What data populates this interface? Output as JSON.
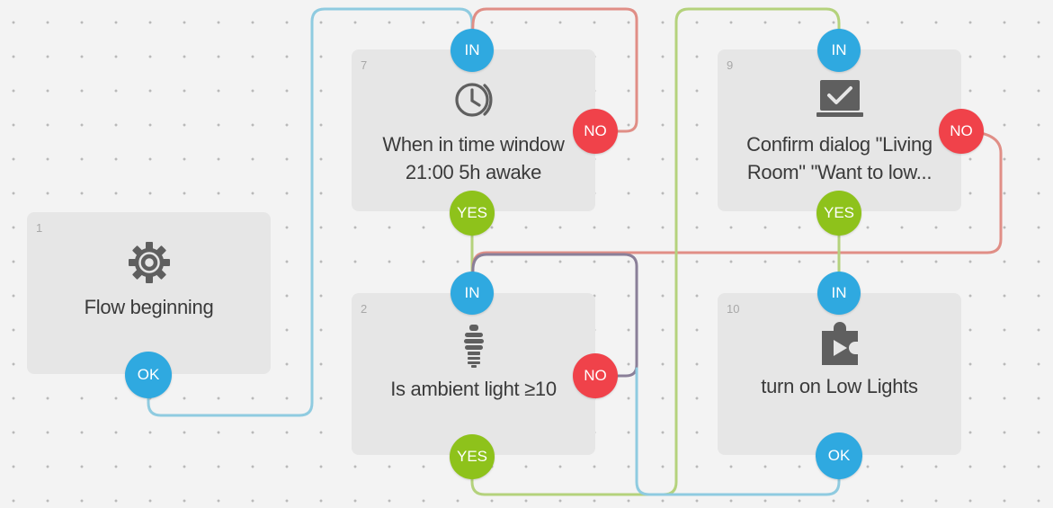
{
  "blocks": [
    {
      "id": "b1",
      "number": "1",
      "icon": "gear-icon",
      "label_lines": [
        "Flow beginning"
      ],
      "ports": [
        {
          "kind": "ok",
          "label": "OK"
        }
      ]
    },
    {
      "id": "b7",
      "number": "7",
      "icon": "clock-icon",
      "label_lines": [
        "When in time window",
        "21:00 5h awake"
      ],
      "ports": [
        {
          "kind": "in",
          "label": "IN"
        },
        {
          "kind": "no",
          "label": "NO"
        },
        {
          "kind": "yes",
          "label": "YES"
        }
      ]
    },
    {
      "id": "b2",
      "number": "2",
      "icon": "lightbulb-icon",
      "label_lines": [
        "Is ambient light ≥10"
      ],
      "ports": [
        {
          "kind": "in",
          "label": "IN"
        },
        {
          "kind": "no",
          "label": "NO"
        },
        {
          "kind": "yes",
          "label": "YES"
        }
      ]
    },
    {
      "id": "b9",
      "number": "9",
      "icon": "confirm-dialog-icon",
      "label_lines": [
        "Confirm dialog \"Living",
        "Room\" \"Want to low..."
      ],
      "ports": [
        {
          "kind": "in",
          "label": "IN"
        },
        {
          "kind": "no",
          "label": "NO"
        },
        {
          "kind": "yes",
          "label": "YES"
        }
      ]
    },
    {
      "id": "b10",
      "number": "10",
      "icon": "plugin-play-icon",
      "label_lines": [
        "turn on Low Lights"
      ],
      "ports": [
        {
          "kind": "in",
          "label": "IN"
        },
        {
          "kind": "ok",
          "label": "OK"
        }
      ]
    }
  ],
  "colors": {
    "canvas": "#f3f3f3",
    "block": "#e6e6e6",
    "port_in": "#2fa9e0",
    "port_ok": "#2fa9e0",
    "port_yes": "#8ec21b",
    "port_no": "#f0424a",
    "wire_blue": "#8fcbe0",
    "wire_red": "#e08e86",
    "wire_green": "#b4d27c"
  }
}
